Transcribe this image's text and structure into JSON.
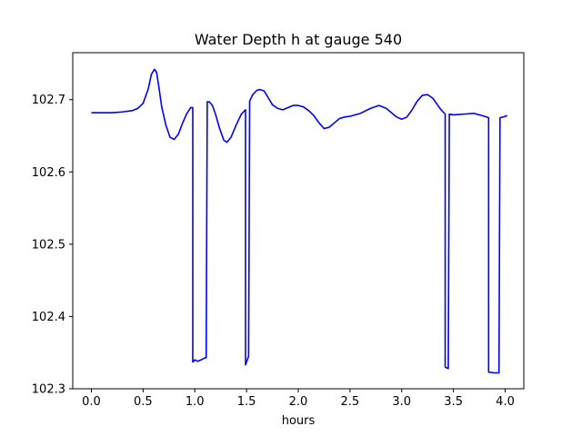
{
  "chart_data": {
    "type": "line",
    "title": "Water Depth h at gauge 540",
    "xlabel": "hours",
    "ylabel": "",
    "xlim": [
      -0.18,
      4.18
    ],
    "ylim": [
      102.3,
      102.765
    ],
    "grid": false,
    "legend": "none",
    "xticks": [
      0.0,
      0.5,
      1.0,
      1.5,
      2.0,
      2.5,
      3.0,
      3.5,
      4.0
    ],
    "xtick_labels": [
      "0.0",
      "0.5",
      "1.0",
      "1.5",
      "2.0",
      "2.5",
      "3.0",
      "3.5",
      "4.0"
    ],
    "yticks": [
      102.3,
      102.4,
      102.5,
      102.6,
      102.7
    ],
    "ytick_labels": [
      "102.3",
      "102.4",
      "102.5",
      "102.6",
      "102.7"
    ],
    "series": [
      {
        "color": "#0000ff",
        "x": [
          0.0,
          0.1,
          0.2,
          0.3,
          0.4,
          0.45,
          0.5,
          0.55,
          0.58,
          0.61,
          0.63,
          0.65,
          0.68,
          0.72,
          0.76,
          0.8,
          0.84,
          0.88,
          0.92,
          0.96,
          0.98,
          0.98,
          1.0,
          1.03,
          1.06,
          1.1,
          1.11,
          1.12,
          1.14,
          1.17,
          1.2,
          1.24,
          1.28,
          1.31,
          1.35,
          1.4,
          1.45,
          1.49,
          1.49,
          1.5,
          1.52,
          1.53,
          1.56,
          1.6,
          1.63,
          1.67,
          1.7,
          1.75,
          1.8,
          1.85,
          1.9,
          1.95,
          2.0,
          2.05,
          2.1,
          2.15,
          2.2,
          2.25,
          2.3,
          2.35,
          2.4,
          2.45,
          2.5,
          2.6,
          2.7,
          2.78,
          2.85,
          2.9,
          2.95,
          3.0,
          3.05,
          3.1,
          3.15,
          3.2,
          3.25,
          3.3,
          3.35,
          3.38,
          3.42,
          3.42,
          3.45,
          3.46,
          3.5,
          3.6,
          3.7,
          3.8,
          3.84,
          3.84,
          3.9,
          3.94,
          3.95,
          3.98,
          4.02
        ],
        "y": [
          102.682,
          102.682,
          102.682,
          102.683,
          102.685,
          102.688,
          102.695,
          102.715,
          102.735,
          102.742,
          102.738,
          102.72,
          102.69,
          102.665,
          102.648,
          102.645,
          102.652,
          102.667,
          102.68,
          102.689,
          102.689,
          102.337,
          102.34,
          102.338,
          102.34,
          102.343,
          102.343,
          102.697,
          102.697,
          102.692,
          102.68,
          102.66,
          102.644,
          102.641,
          102.648,
          102.665,
          102.68,
          102.686,
          102.333,
          102.337,
          102.345,
          102.698,
          102.707,
          102.713,
          102.714,
          102.712,
          102.705,
          102.693,
          102.688,
          102.686,
          102.689,
          102.692,
          102.692,
          102.69,
          102.685,
          102.678,
          102.668,
          102.66,
          102.662,
          102.668,
          102.674,
          102.676,
          102.677,
          102.681,
          102.688,
          102.692,
          102.688,
          102.682,
          102.676,
          102.673,
          102.676,
          102.686,
          102.698,
          102.706,
          102.707,
          102.702,
          102.692,
          102.686,
          102.68,
          102.33,
          102.328,
          102.68,
          102.679,
          102.68,
          102.681,
          102.677,
          102.675,
          102.323,
          102.322,
          102.322,
          102.675,
          102.676,
          102.678
        ]
      }
    ]
  }
}
